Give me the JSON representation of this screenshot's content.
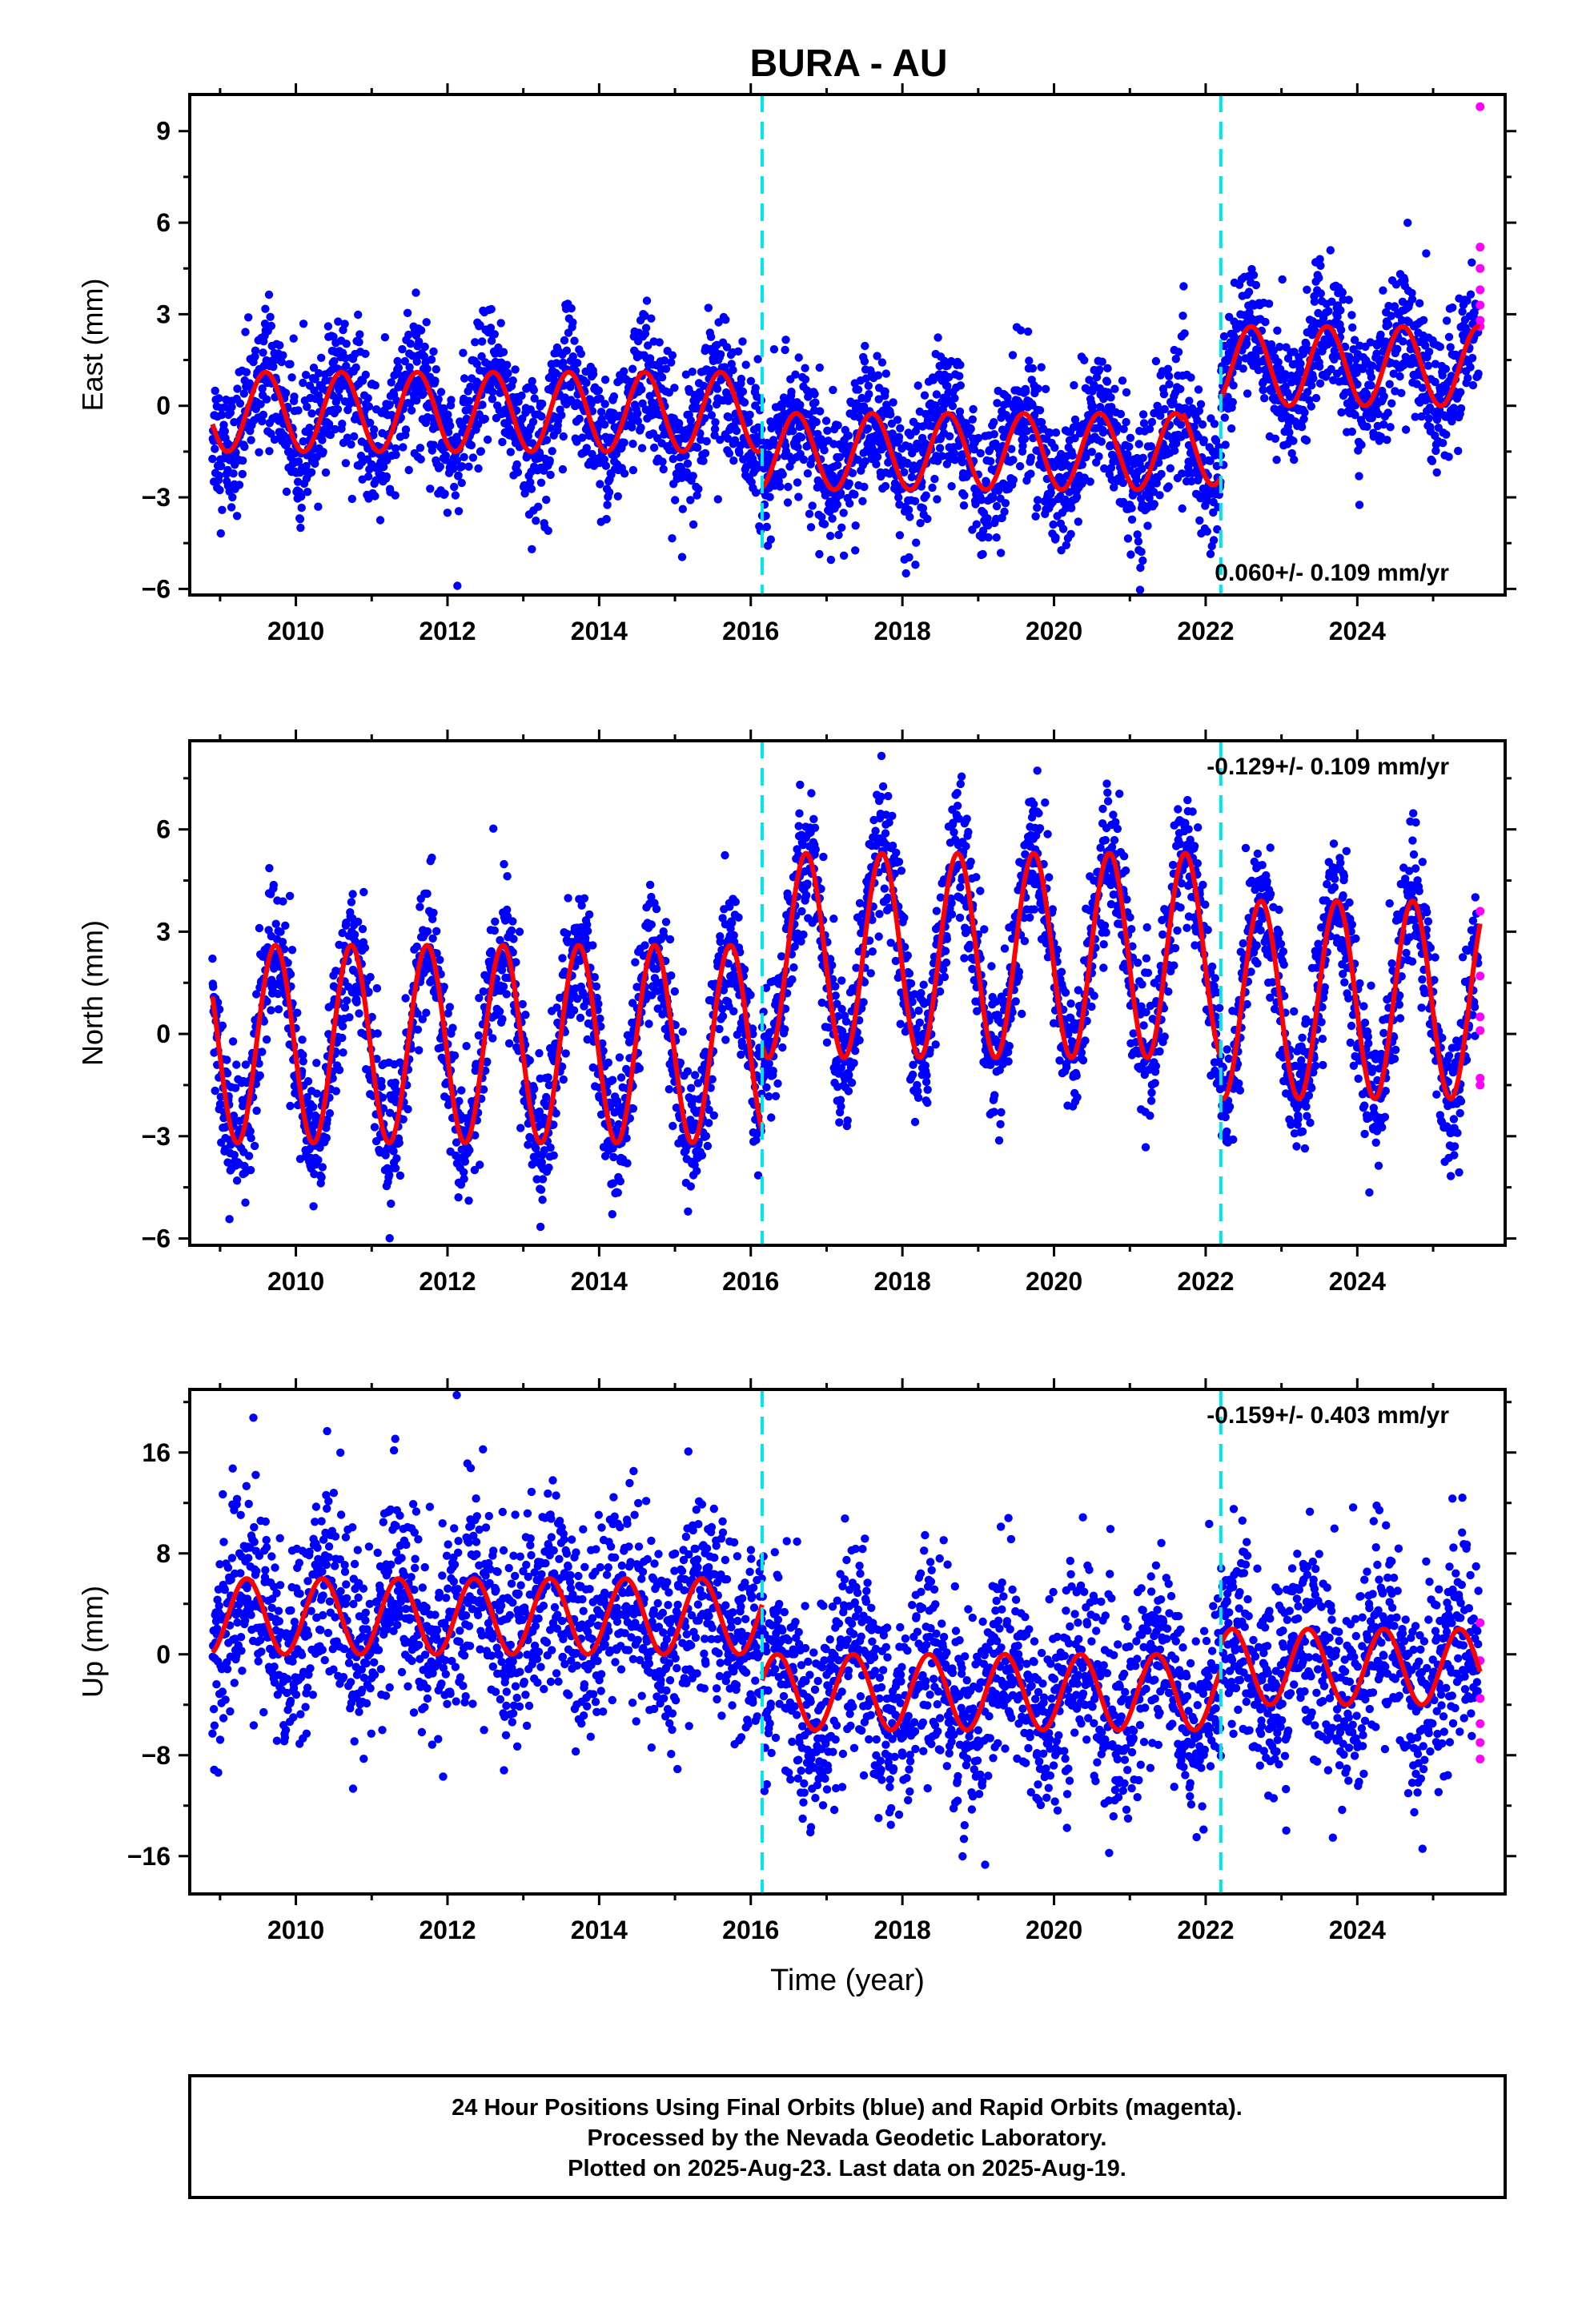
{
  "title": "BURA - AU",
  "footer": {
    "lines": [
      "24 Hour Positions Using Final Orbits (blue) and Rapid Orbits (magenta).",
      "Processed by the Nevada Geodetic Laboratory.",
      "Plotted on 2025-Aug-23. Last data on 2025-Aug-19."
    ]
  },
  "colors": {
    "final": "#0000ff",
    "rapid": "#ff00ff",
    "model": "#ff0000",
    "breaks": "#00e5ee"
  },
  "chart_data": [
    {
      "type": "scatter",
      "ylabel": "East (mm)",
      "xlabel": "",
      "rate": "0.060+/- 0.109 mm/yr",
      "xlim": [
        2008.6,
        2025.95
      ],
      "ylim": [
        -6.2,
        10.2
      ],
      "yticks": [
        -6,
        -3,
        0,
        3,
        6,
        9
      ],
      "yticklabels": [
        "−6",
        "−3",
        "0",
        "3",
        "6",
        "9"
      ],
      "xticks": [
        2010,
        2012,
        2014,
        2016,
        2018,
        2020,
        2022,
        2024
      ],
      "breaks": [
        2016.15,
        2022.2
      ],
      "model": {
        "segments": [
          {
            "x0": 2008.9,
            "x1": 2016.15,
            "offset": -0.2,
            "amp": 1.3,
            "phase": 0.35
          },
          {
            "x0": 2016.15,
            "x1": 2021.7,
            "offset": -1.5,
            "amp": 1.25,
            "phase": 0.35
          },
          {
            "x0": 2021.7,
            "x1": 2022.2,
            "offset": -1.3,
            "amp": 1.3,
            "phase": 0.35
          },
          {
            "x0": 2022.2,
            "x1": 2025.62,
            "offset": 1.3,
            "amp": 1.3,
            "phase": 0.35
          }
        ]
      },
      "scatter_sd": 1.1,
      "rapid_points": [
        {
          "x": 2025.62,
          "y": 9.8
        },
        {
          "x": 2025.62,
          "y": 5.2
        },
        {
          "x": 2025.62,
          "y": 4.5
        },
        {
          "x": 2025.62,
          "y": 3.8
        },
        {
          "x": 2025.62,
          "y": 3.3
        },
        {
          "x": 2025.62,
          "y": 2.8
        },
        {
          "x": 2025.62,
          "y": 2.6
        }
      ]
    },
    {
      "type": "scatter",
      "ylabel": "North (mm)",
      "xlabel": "",
      "rate": "-0.129+/- 0.109 mm/yr",
      "xlim": [
        2008.6,
        2025.95
      ],
      "ylim": [
        -6.2,
        8.6
      ],
      "yticks": [
        -6,
        -3,
        0,
        3,
        6
      ],
      "yticklabels": [
        "−6",
        "−3",
        "0",
        "3",
        "6"
      ],
      "xticks": [
        2010,
        2012,
        2014,
        2016,
        2018,
        2020,
        2022,
        2024
      ],
      "breaks": [
        2016.15,
        2022.2
      ],
      "model": {
        "segments": [
          {
            "x0": 2008.9,
            "x1": 2016.15,
            "offset": -0.3,
            "amp": 2.9,
            "phase": 0.48
          },
          {
            "x0": 2016.15,
            "x1": 2022.2,
            "offset": 2.3,
            "amp": 3.0,
            "phase": 0.48
          },
          {
            "x0": 2022.2,
            "x1": 2025.62,
            "offset": 1.0,
            "amp": 2.9,
            "phase": 0.48
          }
        ]
      },
      "scatter_sd": 1.0,
      "rapid_points": [
        {
          "x": 2025.62,
          "y": 3.6
        },
        {
          "x": 2025.62,
          "y": 1.7
        },
        {
          "x": 2025.62,
          "y": 0.5
        },
        {
          "x": 2025.62,
          "y": 0.1
        },
        {
          "x": 2025.62,
          "y": -1.3
        },
        {
          "x": 2025.62,
          "y": -1.5
        }
      ]
    },
    {
      "type": "scatter",
      "ylabel": "Up (mm)",
      "xlabel": "Time (year)",
      "rate": "-0.159+/- 0.403 mm/yr",
      "xlim": [
        2008.6,
        2025.95
      ],
      "ylim": [
        -19,
        21
      ],
      "yticks": [
        -16,
        -8,
        0,
        8,
        16
      ],
      "yticklabels": [
        "−16",
        "−8",
        "0",
        "8",
        "16"
      ],
      "xticks": [
        2010,
        2012,
        2014,
        2016,
        2018,
        2020,
        2022,
        2024
      ],
      "breaks": [
        2016.15,
        2022.2
      ],
      "model": {
        "segments": [
          {
            "x0": 2008.9,
            "x1": 2016.15,
            "offset": 3.0,
            "amp": 3.0,
            "phase": 0.1
          },
          {
            "x0": 2016.15,
            "x1": 2022.2,
            "offset": -3.0,
            "amp": 3.0,
            "phase": 0.1
          },
          {
            "x0": 2022.2,
            "x1": 2025.62,
            "offset": -1.0,
            "amp": 3.0,
            "phase": 0.1
          }
        ]
      },
      "scatter_sd": 4.0,
      "rapid_points": [
        {
          "x": 2025.62,
          "y": 2.5
        },
        {
          "x": 2025.62,
          "y": -0.5
        },
        {
          "x": 2025.62,
          "y": -3.5
        },
        {
          "x": 2025.62,
          "y": -5.5
        },
        {
          "x": 2025.62,
          "y": -7.0
        },
        {
          "x": 2025.62,
          "y": -8.3
        }
      ]
    }
  ]
}
